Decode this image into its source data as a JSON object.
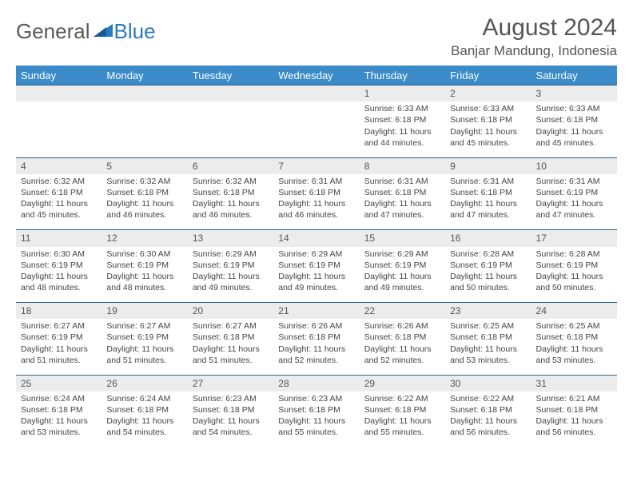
{
  "brand": {
    "part1": "General",
    "part2": "Blue"
  },
  "title": "August 2024",
  "location": "Banjar Mandung, Indonesia",
  "colors": {
    "header_bg": "#3b8bc9",
    "header_text": "#ffffff",
    "daynum_bg": "#ececec",
    "border": "#2b5f8a",
    "brand_gray": "#5a5a5a",
    "brand_blue": "#2b7ac0"
  },
  "weekdays": [
    "Sunday",
    "Monday",
    "Tuesday",
    "Wednesday",
    "Thursday",
    "Friday",
    "Saturday"
  ],
  "weeks": [
    {
      "nums": [
        "",
        "",
        "",
        "",
        "1",
        "2",
        "3"
      ],
      "info": [
        "",
        "",
        "",
        "",
        "Sunrise: 6:33 AM\nSunset: 6:18 PM\nDaylight: 11 hours and 44 minutes.",
        "Sunrise: 6:33 AM\nSunset: 6:18 PM\nDaylight: 11 hours and 45 minutes.",
        "Sunrise: 6:33 AM\nSunset: 6:18 PM\nDaylight: 11 hours and 45 minutes."
      ]
    },
    {
      "nums": [
        "4",
        "5",
        "6",
        "7",
        "8",
        "9",
        "10"
      ],
      "info": [
        "Sunrise: 6:32 AM\nSunset: 6:18 PM\nDaylight: 11 hours and 45 minutes.",
        "Sunrise: 6:32 AM\nSunset: 6:18 PM\nDaylight: 11 hours and 46 minutes.",
        "Sunrise: 6:32 AM\nSunset: 6:18 PM\nDaylight: 11 hours and 46 minutes.",
        "Sunrise: 6:31 AM\nSunset: 6:18 PM\nDaylight: 11 hours and 46 minutes.",
        "Sunrise: 6:31 AM\nSunset: 6:18 PM\nDaylight: 11 hours and 47 minutes.",
        "Sunrise: 6:31 AM\nSunset: 6:18 PM\nDaylight: 11 hours and 47 minutes.",
        "Sunrise: 6:31 AM\nSunset: 6:19 PM\nDaylight: 11 hours and 47 minutes."
      ]
    },
    {
      "nums": [
        "11",
        "12",
        "13",
        "14",
        "15",
        "16",
        "17"
      ],
      "info": [
        "Sunrise: 6:30 AM\nSunset: 6:19 PM\nDaylight: 11 hours and 48 minutes.",
        "Sunrise: 6:30 AM\nSunset: 6:19 PM\nDaylight: 11 hours and 48 minutes.",
        "Sunrise: 6:29 AM\nSunset: 6:19 PM\nDaylight: 11 hours and 49 minutes.",
        "Sunrise: 6:29 AM\nSunset: 6:19 PM\nDaylight: 11 hours and 49 minutes.",
        "Sunrise: 6:29 AM\nSunset: 6:19 PM\nDaylight: 11 hours and 49 minutes.",
        "Sunrise: 6:28 AM\nSunset: 6:19 PM\nDaylight: 11 hours and 50 minutes.",
        "Sunrise: 6:28 AM\nSunset: 6:19 PM\nDaylight: 11 hours and 50 minutes."
      ]
    },
    {
      "nums": [
        "18",
        "19",
        "20",
        "21",
        "22",
        "23",
        "24"
      ],
      "info": [
        "Sunrise: 6:27 AM\nSunset: 6:19 PM\nDaylight: 11 hours and 51 minutes.",
        "Sunrise: 6:27 AM\nSunset: 6:19 PM\nDaylight: 11 hours and 51 minutes.",
        "Sunrise: 6:27 AM\nSunset: 6:18 PM\nDaylight: 11 hours and 51 minutes.",
        "Sunrise: 6:26 AM\nSunset: 6:18 PM\nDaylight: 11 hours and 52 minutes.",
        "Sunrise: 6:26 AM\nSunset: 6:18 PM\nDaylight: 11 hours and 52 minutes.",
        "Sunrise: 6:25 AM\nSunset: 6:18 PM\nDaylight: 11 hours and 53 minutes.",
        "Sunrise: 6:25 AM\nSunset: 6:18 PM\nDaylight: 11 hours and 53 minutes."
      ]
    },
    {
      "nums": [
        "25",
        "26",
        "27",
        "28",
        "29",
        "30",
        "31"
      ],
      "info": [
        "Sunrise: 6:24 AM\nSunset: 6:18 PM\nDaylight: 11 hours and 53 minutes.",
        "Sunrise: 6:24 AM\nSunset: 6:18 PM\nDaylight: 11 hours and 54 minutes.",
        "Sunrise: 6:23 AM\nSunset: 6:18 PM\nDaylight: 11 hours and 54 minutes.",
        "Sunrise: 6:23 AM\nSunset: 6:18 PM\nDaylight: 11 hours and 55 minutes.",
        "Sunrise: 6:22 AM\nSunset: 6:18 PM\nDaylight: 11 hours and 55 minutes.",
        "Sunrise: 6:22 AM\nSunset: 6:18 PM\nDaylight: 11 hours and 56 minutes.",
        "Sunrise: 6:21 AM\nSunset: 6:18 PM\nDaylight: 11 hours and 56 minutes."
      ]
    }
  ]
}
